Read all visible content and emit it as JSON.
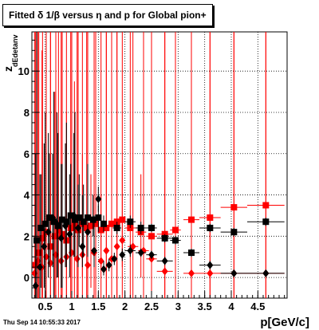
{
  "title_text": "Fitted δ 1/β versus η and p for Global pion+",
  "footer_text": "Thu Sep 14 10:55:33 2017",
  "chart_data": {
    "type": "scatter",
    "title": "Fitted δ 1/β versus η and p for Global pion+",
    "xlabel": "p[GeV/c]",
    "ylabel": "z",
    "ylabel_subscript": "dEdetanv",
    "xlim": [
      0.25,
      5.05
    ],
    "ylim": [
      -1.0,
      11.9
    ],
    "xticks": [
      {
        "value": 0.5,
        "label": "0.5"
      },
      {
        "value": 1.0,
        "label": "1"
      },
      {
        "value": 1.5,
        "label": "1.5"
      },
      {
        "value": 2.0,
        "label": "2"
      },
      {
        "value": 2.5,
        "label": "2.5"
      },
      {
        "value": 3.0,
        "label": "3"
      },
      {
        "value": 3.5,
        "label": "3.5"
      },
      {
        "value": 4.0,
        "label": "4"
      },
      {
        "value": 4.5,
        "label": "4.5"
      }
    ],
    "yticks": [
      {
        "value": 0,
        "label": "0"
      },
      {
        "value": 2,
        "label": "2"
      },
      {
        "value": 4,
        "label": "4"
      },
      {
        "value": 6,
        "label": "6"
      },
      {
        "value": 8,
        "label": "8"
      },
      {
        "value": 10,
        "label": "10"
      }
    ],
    "grid": true,
    "series": [
      {
        "color": "#ff0000",
        "marker": "square",
        "points": [
          {
            "x": 0.32,
            "y": 0.6,
            "xerr": 0.05,
            "ylow": -1.0,
            "yhigh": 11.9
          },
          {
            "x": 0.38,
            "y": 1.2,
            "xerr": 0.05,
            "ylow": -1.0,
            "yhigh": 11.9
          },
          {
            "x": 0.45,
            "y": 1.9,
            "xerr": 0.05,
            "ylow": -1.0,
            "yhigh": 11.9
          },
          {
            "x": 0.52,
            "y": 2.2,
            "xerr": 0.05,
            "ylow": -1.0,
            "yhigh": 10.5
          },
          {
            "x": 0.6,
            "y": 1.5,
            "xerr": 0.05,
            "ylow": -1.0,
            "yhigh": 11.9
          },
          {
            "x": 0.68,
            "y": 2.0,
            "xerr": 0.05,
            "ylow": -1.0,
            "yhigh": 9.0
          },
          {
            "x": 0.75,
            "y": 2.3,
            "xerr": 0.05,
            "ylow": -1.0,
            "yhigh": 11.9
          },
          {
            "x": 0.82,
            "y": 2.1,
            "xerr": 0.05,
            "ylow": -1.0,
            "yhigh": 11.9
          },
          {
            "x": 0.9,
            "y": 1.8,
            "xerr": 0.05,
            "ylow": -1.0,
            "yhigh": 8.0
          },
          {
            "x": 0.98,
            "y": 2.4,
            "xerr": 0.05,
            "ylow": -1.0,
            "yhigh": 11.9
          },
          {
            "x": 1.05,
            "y": 2.5,
            "xerr": 0.05,
            "ylow": -1.0,
            "yhigh": 9.5
          },
          {
            "x": 1.12,
            "y": 2.3,
            "xerr": 0.05,
            "ylow": -1.0,
            "yhigh": 11.9
          },
          {
            "x": 1.2,
            "y": 2.6,
            "xerr": 0.05,
            "ylow": 0.0,
            "yhigh": 6.0
          },
          {
            "x": 1.28,
            "y": 2.4,
            "xerr": 0.05,
            "ylow": -1.0,
            "yhigh": 11.9
          },
          {
            "x": 1.36,
            "y": 2.5,
            "xerr": 0.05,
            "ylow": -0.5,
            "yhigh": 5.0
          },
          {
            "x": 1.45,
            "y": 2.6,
            "xerr": 0.05,
            "ylow": -1.0,
            "yhigh": 11.9
          },
          {
            "x": 1.55,
            "y": 2.3,
            "xerr": 0.05,
            "ylow": 0.5,
            "yhigh": 4.0
          },
          {
            "x": 1.65,
            "y": 2.4,
            "xerr": 0.05,
            "ylow": -1.0,
            "yhigh": 11.9
          },
          {
            "x": 1.75,
            "y": 2.6,
            "xerr": 0.05,
            "ylow": 0.0,
            "yhigh": 5.0
          },
          {
            "x": 1.85,
            "y": 2.7,
            "xerr": 0.05,
            "ylow": -1.0,
            "yhigh": 11.9
          },
          {
            "x": 1.95,
            "y": 2.8,
            "xerr": 0.05,
            "ylow": 0.5,
            "yhigh": 5.5
          },
          {
            "x": 2.1,
            "y": 2.4,
            "xerr": 0.1,
            "ylow": -1.0,
            "yhigh": 11.9
          },
          {
            "x": 2.3,
            "y": 2.2,
            "xerr": 0.1,
            "ylow": 0.0,
            "yhigh": 5.0
          },
          {
            "x": 2.5,
            "y": 2.0,
            "xerr": 0.1,
            "ylow": -1.0,
            "yhigh": 11.9
          },
          {
            "x": 2.75,
            "y": 2.1,
            "xerr": 0.15,
            "ylow": -1.0,
            "yhigh": 11.9
          },
          {
            "x": 2.95,
            "y": 2.3,
            "xerr": 0.1,
            "ylow": -1.0,
            "yhigh": 11.9
          },
          {
            "x": 3.25,
            "y": 2.8,
            "xerr": 0.15,
            "ylow": -1.0,
            "yhigh": 11.9
          },
          {
            "x": 3.6,
            "y": 2.9,
            "xerr": 0.2,
            "ylow": -1.0,
            "yhigh": 11.9
          },
          {
            "x": 4.05,
            "y": 3.4,
            "xerr": 0.25,
            "ylow": -1.0,
            "yhigh": 11.9
          },
          {
            "x": 4.65,
            "y": 3.5,
            "xerr": 0.35,
            "ylow": -1.0,
            "yhigh": 11.9
          }
        ]
      },
      {
        "color": "#ff0000",
        "marker": "diamond",
        "points": [
          {
            "x": 0.3,
            "y": 0.2,
            "xerr": 0.05,
            "ylow": -1.0,
            "yhigh": 11.9
          },
          {
            "x": 0.36,
            "y": 0.8,
            "xerr": 0.05,
            "ylow": -1.0,
            "yhigh": 11.9
          },
          {
            "x": 0.44,
            "y": 0.5,
            "xerr": 0.05,
            "ylow": -1.0,
            "yhigh": 11.0
          },
          {
            "x": 0.52,
            "y": 1.0,
            "xerr": 0.05,
            "ylow": -1.0,
            "yhigh": 11.9
          },
          {
            "x": 0.6,
            "y": 0.7,
            "xerr": 0.05,
            "ylow": -1.0,
            "yhigh": 11.9
          },
          {
            "x": 0.7,
            "y": 1.1,
            "xerr": 0.05,
            "ylow": -1.0,
            "yhigh": 11.9
          },
          {
            "x": 0.8,
            "y": 0.8,
            "xerr": 0.05,
            "ylow": -1.0,
            "yhigh": 11.9
          },
          {
            "x": 0.9,
            "y": 1.0,
            "xerr": 0.05,
            "ylow": -1.0,
            "yhigh": 11.9
          },
          {
            "x": 1.0,
            "y": 1.2,
            "xerr": 0.05,
            "ylow": -1.0,
            "yhigh": 11.9
          },
          {
            "x": 1.1,
            "y": 0.9,
            "xerr": 0.05,
            "ylow": -1.0,
            "yhigh": 11.9
          },
          {
            "x": 1.2,
            "y": 1.1,
            "xerr": 0.05,
            "ylow": -1.0,
            "yhigh": 11.9
          },
          {
            "x": 1.3,
            "y": 0.6,
            "xerr": 0.05,
            "ylow": -1.0,
            "yhigh": 11.9
          },
          {
            "x": 1.42,
            "y": 1.2,
            "xerr": 0.05,
            "ylow": -1.0,
            "yhigh": 11.9
          },
          {
            "x": 1.55,
            "y": 0.8,
            "xerr": 0.05,
            "ylow": -1.0,
            "yhigh": 11.9
          },
          {
            "x": 1.65,
            "y": 1.3,
            "xerr": 0.05,
            "ylow": -1.0,
            "yhigh": 11.9
          },
          {
            "x": 1.75,
            "y": 0.9,
            "xerr": 0.05,
            "ylow": -1.0,
            "yhigh": 11.9
          },
          {
            "x": 1.85,
            "y": 1.5,
            "xerr": 0.05,
            "ylow": -1.0,
            "yhigh": 11.9
          },
          {
            "x": 1.95,
            "y": 1.8,
            "xerr": 0.05,
            "ylow": -1.0,
            "yhigh": 11.9
          },
          {
            "x": 2.15,
            "y": 1.5,
            "xerr": 0.1,
            "ylow": -1.0,
            "yhigh": 11.9
          },
          {
            "x": 2.35,
            "y": 1.3,
            "xerr": 0.1,
            "ylow": -1.0,
            "yhigh": 11.9
          },
          {
            "x": 2.5,
            "y": 0.9,
            "xerr": 0.1,
            "ylow": -1.0,
            "yhigh": 11.9
          },
          {
            "x": 2.75,
            "y": 0.3,
            "xerr": 0.15,
            "ylow": -1.0,
            "yhigh": 11.9
          },
          {
            "x": 3.25,
            "y": 0.2,
            "xerr": 0.15,
            "ylow": -1.0,
            "yhigh": 11.9
          },
          {
            "x": 3.6,
            "y": 0.2,
            "xerr": 0.2,
            "ylow": -1.0,
            "yhigh": 11.9
          },
          {
            "x": 4.05,
            "y": 0.2,
            "xerr": 0.25,
            "ylow": -1.0,
            "yhigh": 11.9
          },
          {
            "x": 4.65,
            "y": 0.2,
            "xerr": 0.35,
            "ylow": -1.0,
            "yhigh": 11.9
          }
        ]
      },
      {
        "color": "#000000",
        "marker": "square",
        "points": [
          {
            "x": 0.34,
            "y": 1.8,
            "xerr": 0.05,
            "ylow": -1.0,
            "yhigh": 11.9
          },
          {
            "x": 0.42,
            "y": 2.4,
            "xerr": 0.05,
            "ylow": -0.5,
            "yhigh": 5.0
          },
          {
            "x": 0.5,
            "y": 2.6,
            "xerr": 0.05,
            "ylow": -1.0,
            "yhigh": 8.0
          },
          {
            "x": 0.58,
            "y": 2.9,
            "xerr": 0.05,
            "ylow": 0.5,
            "yhigh": 6.0
          },
          {
            "x": 0.66,
            "y": 2.7,
            "xerr": 0.05,
            "ylow": -1.0,
            "yhigh": 9.0
          },
          {
            "x": 0.74,
            "y": 2.5,
            "xerr": 0.05,
            "ylow": 0.0,
            "yhigh": 7.0
          },
          {
            "x": 0.82,
            "y": 2.8,
            "xerr": 0.05,
            "ylow": -0.5,
            "yhigh": 5.5
          },
          {
            "x": 0.9,
            "y": 2.7,
            "xerr": 0.05,
            "ylow": 0.5,
            "yhigh": 7.5
          },
          {
            "x": 0.98,
            "y": 3.0,
            "xerr": 0.05,
            "ylow": 1.0,
            "yhigh": 5.5
          },
          {
            "x": 1.06,
            "y": 2.8,
            "xerr": 0.05,
            "ylow": 1.0,
            "yhigh": 8.0
          },
          {
            "x": 1.14,
            "y": 2.9,
            "xerr": 0.05,
            "ylow": 1.5,
            "yhigh": 5.0
          },
          {
            "x": 1.22,
            "y": 2.7,
            "xerr": 0.05,
            "ylow": 1.0,
            "yhigh": 4.5
          },
          {
            "x": 1.3,
            "y": 2.9,
            "xerr": 0.05,
            "ylow": 1.5,
            "yhigh": 5.5
          },
          {
            "x": 1.4,
            "y": 2.8,
            "xerr": 0.05,
            "ylow": 2.0,
            "yhigh": 4.0
          },
          {
            "x": 1.5,
            "y": 2.9,
            "xerr": 0.05,
            "ylow": 2.2,
            "yhigh": 3.5
          },
          {
            "x": 1.6,
            "y": 2.6,
            "xerr": 0.05,
            "ylow": 2.2,
            "yhigh": 3.0
          },
          {
            "x": 1.85,
            "y": 2.4,
            "xerr": 0.08,
            "ylow": 2.1,
            "yhigh": 2.7
          },
          {
            "x": 2.1,
            "y": 2.7,
            "xerr": 0.1,
            "ylow": 2.4,
            "yhigh": 3.0
          },
          {
            "x": 2.3,
            "y": 2.4,
            "xerr": 0.1,
            "ylow": 2.1,
            "yhigh": 2.7
          },
          {
            "x": 2.5,
            "y": 2.4,
            "xerr": 0.1,
            "ylow": 2.2,
            "yhigh": 2.6
          },
          {
            "x": 2.75,
            "y": 1.9,
            "xerr": 0.15,
            "ylow": 1.7,
            "yhigh": 2.1
          },
          {
            "x": 2.95,
            "y": 1.8,
            "xerr": 0.1,
            "ylow": 1.6,
            "yhigh": 2.0
          },
          {
            "x": 3.25,
            "y": 1.2,
            "xerr": 0.15,
            "ylow": 1.0,
            "yhigh": 1.4
          },
          {
            "x": 3.6,
            "y": 2.4,
            "xerr": 0.2,
            "ylow": 2.2,
            "yhigh": 2.6
          },
          {
            "x": 4.05,
            "y": 2.2,
            "xerr": 0.25,
            "ylow": 2.0,
            "yhigh": 2.4
          },
          {
            "x": 4.65,
            "y": 2.7,
            "xerr": 0.35,
            "ylow": 2.5,
            "yhigh": 2.9
          }
        ]
      },
      {
        "color": "#000000",
        "marker": "diamond",
        "points": [
          {
            "x": 0.32,
            "y": -0.4,
            "xerr": 0.05,
            "ylow": -1.0,
            "yhigh": 6.0
          },
          {
            "x": 0.4,
            "y": 0.5,
            "xerr": 0.05,
            "ylow": -1.0,
            "yhigh": 5.0
          },
          {
            "x": 0.48,
            "y": 1.5,
            "xerr": 0.05,
            "ylow": -0.5,
            "yhigh": 6.5
          },
          {
            "x": 0.56,
            "y": 2.2,
            "xerr": 0.05,
            "ylow": 0.0,
            "yhigh": 7.0
          },
          {
            "x": 0.64,
            "y": 2.9,
            "xerr": 0.05,
            "ylow": 0.5,
            "yhigh": 6.0
          },
          {
            "x": 0.72,
            "y": 2.6,
            "xerr": 0.05,
            "ylow": 0.0,
            "yhigh": 8.0
          },
          {
            "x": 0.8,
            "y": 1.9,
            "xerr": 0.05,
            "ylow": -0.5,
            "yhigh": 5.5
          },
          {
            "x": 0.88,
            "y": 2.5,
            "xerr": 0.05,
            "ylow": 0.5,
            "yhigh": 6.5
          },
          {
            "x": 0.96,
            "y": 2.1,
            "xerr": 0.05,
            "ylow": 0.0,
            "yhigh": 5.0
          },
          {
            "x": 1.04,
            "y": 3.0,
            "xerr": 0.05,
            "ylow": 1.0,
            "yhigh": 7.0
          },
          {
            "x": 1.12,
            "y": 2.4,
            "xerr": 0.05,
            "ylow": 0.5,
            "yhigh": 4.5
          },
          {
            "x": 1.2,
            "y": 1.5,
            "xerr": 0.05,
            "ylow": 0.5,
            "yhigh": 4.0
          },
          {
            "x": 1.3,
            "y": 2.2,
            "xerr": 0.05,
            "ylow": 1.0,
            "yhigh": 4.0
          },
          {
            "x": 1.42,
            "y": 1.3,
            "xerr": 0.05,
            "ylow": 0.5,
            "yhigh": 3.0
          },
          {
            "x": 1.5,
            "y": 3.8,
            "xerr": 0.05,
            "ylow": 3.2,
            "yhigh": 4.4
          },
          {
            "x": 1.6,
            "y": 0.4,
            "xerr": 0.05,
            "ylow": 0.1,
            "yhigh": 0.8
          },
          {
            "x": 1.7,
            "y": 0.6,
            "xerr": 0.05,
            "ylow": 0.3,
            "yhigh": 0.9
          },
          {
            "x": 1.8,
            "y": 0.9,
            "xerr": 0.05,
            "ylow": 0.6,
            "yhigh": 1.2
          },
          {
            "x": 1.95,
            "y": 1.1,
            "xerr": 0.05,
            "ylow": 0.8,
            "yhigh": 1.4
          },
          {
            "x": 2.1,
            "y": 1.3,
            "xerr": 0.1,
            "ylow": 1.0,
            "yhigh": 1.6
          },
          {
            "x": 2.3,
            "y": 1.2,
            "xerr": 0.1,
            "ylow": 1.0,
            "yhigh": 1.4
          },
          {
            "x": 2.5,
            "y": 1.1,
            "xerr": 0.1,
            "ylow": 0.9,
            "yhigh": 1.3
          },
          {
            "x": 2.75,
            "y": 0.8,
            "xerr": 0.15,
            "ylow": 0.6,
            "yhigh": 1.0
          },
          {
            "x": 3.6,
            "y": 0.6,
            "xerr": 0.2,
            "ylow": 0.4,
            "yhigh": 0.8
          },
          {
            "x": 4.05,
            "y": 0.2,
            "xerr": 0.25,
            "ylow": 0.1,
            "yhigh": 0.3
          },
          {
            "x": 4.65,
            "y": 0.2,
            "xerr": 0.35,
            "ylow": 0.1,
            "yhigh": 0.3
          }
        ]
      }
    ]
  }
}
